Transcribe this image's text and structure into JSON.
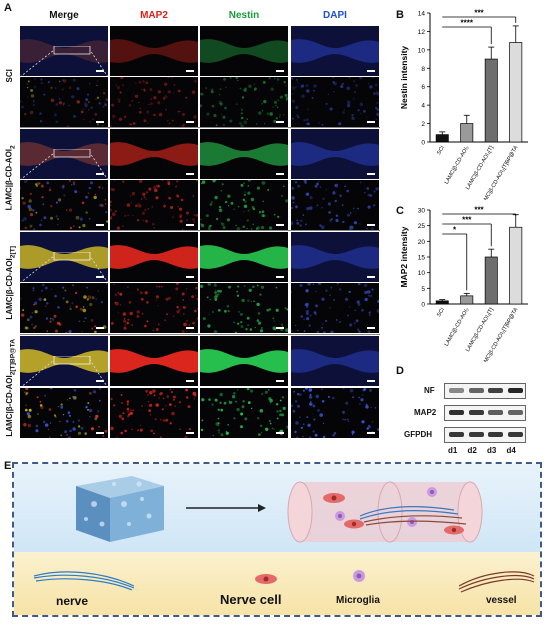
{
  "panel_labels": [
    "A",
    "B",
    "C",
    "D",
    "E"
  ],
  "columns": [
    {
      "label": "Merge",
      "color": "#111111"
    },
    {
      "label": "MAP2",
      "color": "#e0201a"
    },
    {
      "label": "Nestin",
      "color": "#1a9c3a"
    },
    {
      "label": "DAPI",
      "color": "#1e4fd1"
    }
  ],
  "groups": [
    {
      "label": "SCI",
      "sub": ""
    },
    {
      "label": "LAMC|β-CD-AOI",
      "sub": "2"
    },
    {
      "label": "LAMC|β-CD-AOI",
      "sub": "2[T]"
    },
    {
      "label": "LAMC|β-CD-AOI",
      "sub": "2[T]BP@TA"
    }
  ],
  "chart_data": [
    {
      "type": "bar",
      "ylabel": "Nestin intensity",
      "ylim": [
        0,
        14
      ],
      "yticks": [
        0,
        2,
        4,
        6,
        8,
        10,
        12,
        14
      ],
      "categories": [
        "SCI",
        "LAMC|β-CD-AOI₂",
        "LAMC|β-CD-AOI₂[T]",
        "LAMC|β-CD-AOI₂[T]BP@TA"
      ],
      "values": [
        0.8,
        2.0,
        9.0,
        10.8
      ],
      "errors": [
        0.3,
        0.9,
        1.3,
        1.8
      ],
      "colors": [
        "#111111",
        "#9a9a9a",
        "#6e6e6e",
        "#dcdcdc"
      ],
      "significance": [
        {
          "from": 0,
          "to": 3,
          "label": "***"
        },
        {
          "from": 0,
          "to": 2,
          "label": "****"
        }
      ]
    },
    {
      "type": "bar",
      "ylabel": "MAP2  intensity",
      "ylim": [
        0,
        30
      ],
      "yticks": [
        0,
        5,
        10,
        15,
        20,
        25,
        30
      ],
      "categories": [
        "SCI",
        "LAMC|β-CD-AOI₂",
        "LAMC|β-CD-AOI₂[T]",
        "LAMC|β-CD-AOI₂[T]BP@TA"
      ],
      "values": [
        1.0,
        2.6,
        15.0,
        24.5
      ],
      "errors": [
        0.4,
        0.8,
        2.5,
        4.0
      ],
      "colors": [
        "#111111",
        "#9a9a9a",
        "#6e6e6e",
        "#dcdcdc"
      ],
      "significance": [
        {
          "from": 0,
          "to": 3,
          "label": "***"
        },
        {
          "from": 0,
          "to": 2,
          "label": "***"
        },
        {
          "from": 0,
          "to": 1,
          "label": "*"
        }
      ]
    }
  ],
  "blot": {
    "rows": [
      "NF",
      "MAP2",
      "GFPDH"
    ],
    "lanes": [
      "d1",
      "d2",
      "d3",
      "d4"
    ],
    "intensity": [
      [
        0.35,
        0.55,
        0.75,
        0.9
      ],
      [
        0.85,
        0.8,
        0.6,
        0.55
      ],
      [
        0.8,
        0.8,
        0.8,
        0.8
      ]
    ]
  },
  "legend": [
    {
      "label": "nerve"
    },
    {
      "label": "Nerve cell"
    },
    {
      "label": "Microglia"
    },
    {
      "label": "vessel"
    }
  ]
}
